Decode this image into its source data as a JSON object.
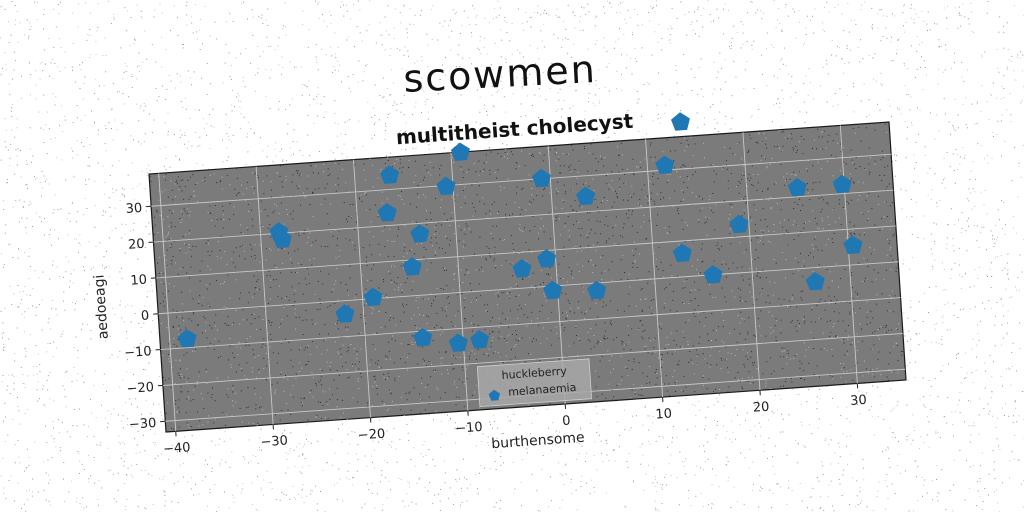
{
  "figure": {
    "suptitle": "scowmen"
  },
  "chart_data": {
    "type": "scatter",
    "title": "multitheist cholecyst",
    "xlabel": "burthensome",
    "ylabel": "aedoeagi",
    "xlim": [
      -41,
      35
    ],
    "ylim": [
      -33,
      39
    ],
    "xticks": [
      -40,
      -30,
      -20,
      -10,
      0,
      10,
      20,
      30
    ],
    "yticks": [
      -30,
      -20,
      -10,
      0,
      10,
      20,
      30
    ],
    "xtick_labels": [
      "−40",
      "−30",
      "−20",
      "−10",
      "0",
      "10",
      "20",
      "30"
    ],
    "ytick_labels": [
      "−30",
      "−20",
      "−10",
      "0",
      "10",
      "20",
      "30"
    ],
    "grid": true,
    "legend": {
      "title": "huckleberry",
      "placement": "lower-center",
      "entries": [
        "melanaemia"
      ]
    },
    "series": [
      {
        "name": "melanaemia",
        "color": "#1f77b4",
        "marker": "pentagon",
        "points": [
          {
            "x": -38.2,
            "y": -7.6
          },
          {
            "x": -28.1,
            "y": 20.3
          },
          {
            "x": -27.8,
            "y": 18.2
          },
          {
            "x": -21.9,
            "y": -3.8
          },
          {
            "x": -18.9,
            "y": 0.3
          },
          {
            "x": -16.9,
            "y": 23.5
          },
          {
            "x": -16.4,
            "y": 33.9
          },
          {
            "x": -14.7,
            "y": 8.0
          },
          {
            "x": -13.7,
            "y": 17.0
          },
          {
            "x": -14.1,
            "y": -11.9
          },
          {
            "x": -10.7,
            "y": 29.7
          },
          {
            "x": -9.0,
            "y": 38.9
          },
          {
            "x": -10.5,
            "y": -14.1
          },
          {
            "x": -8.3,
            "y": -13.6
          },
          {
            "x": -3.5,
            "y": 5.3
          },
          {
            "x": -0.9,
            "y": 7.6
          },
          {
            "x": -0.9,
            "y": 30.0
          },
          {
            "x": -0.5,
            "y": -1.3
          },
          {
            "x": 3.5,
            "y": 24.2
          },
          {
            "x": 4.0,
            "y": -2.2
          },
          {
            "x": 11.8,
            "y": 31.3
          },
          {
            "x": 13.0,
            "y": 6.5
          },
          {
            "x": 13.7,
            "y": 43.0
          },
          {
            "x": 16.0,
            "y": -0.1
          },
          {
            "x": 19.0,
            "y": 13.4
          },
          {
            "x": 25.2,
            "y": 22.5
          },
          {
            "x": 26.4,
            "y": -4.0
          },
          {
            "x": 29.8,
            "y": 22.5
          },
          {
            "x": 30.5,
            "y": 5.4
          }
        ]
      }
    ]
  }
}
